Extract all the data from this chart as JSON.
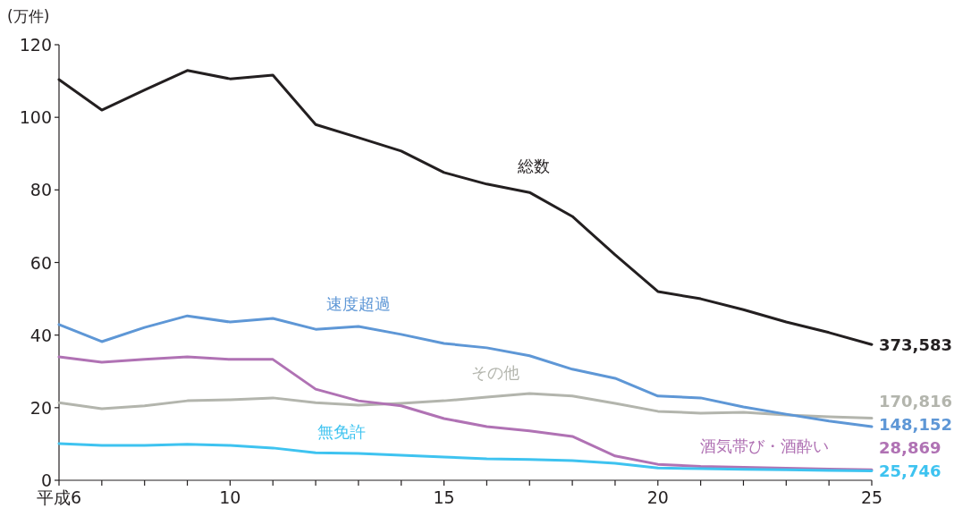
{
  "chart_data": {
    "type": "line",
    "ylabel": "(万件)",
    "x": [
      6,
      7,
      8,
      9,
      10,
      11,
      12,
      13,
      14,
      15,
      16,
      17,
      18,
      19,
      20,
      21,
      22,
      23,
      24,
      25
    ],
    "xlim": [
      6,
      25
    ],
    "ylim": [
      0,
      120
    ],
    "xticks": [
      {
        "value": 6,
        "label": "平成6"
      },
      {
        "value": 7,
        "label": null
      },
      {
        "value": 8,
        "label": null
      },
      {
        "value": 9,
        "label": null
      },
      10,
      {
        "value": 11,
        "label": null
      },
      {
        "value": 12,
        "label": null
      },
      {
        "value": 13,
        "label": null
      },
      {
        "value": 14,
        "label": null
      },
      15,
      {
        "value": 16,
        "label": null
      },
      {
        "value": 17,
        "label": null
      },
      {
        "value": 18,
        "label": null
      },
      {
        "value": 19,
        "label": null
      },
      20,
      {
        "value": 21,
        "label": null
      },
      {
        "value": 22,
        "label": null
      },
      {
        "value": 23,
        "label": null
      },
      {
        "value": 24,
        "label": null
      },
      25
    ],
    "yticks": [
      0,
      20,
      40,
      60,
      80,
      100,
      120
    ],
    "series": [
      {
        "name": "総数",
        "color": "#231f20",
        "values": [
          110.4,
          102,
          107.5,
          112.9,
          110.6,
          111.6,
          98,
          94.4,
          90.7,
          84.8,
          81.6,
          79.3,
          72.7,
          62.1,
          52,
          50,
          47,
          43.6,
          40.7,
          37.4
        ]
      },
      {
        "name": "その他",
        "color": "#b3b5ad",
        "values": [
          21.4,
          19.7,
          20.5,
          21.9,
          22.2,
          22.7,
          21.4,
          20.7,
          21.2,
          21.9,
          22.9,
          23.9,
          23.2,
          21.2,
          19,
          18.5,
          18.7,
          18,
          17.5,
          17.1
        ]
      },
      {
        "name": "速度超過",
        "color": "#5e97d6",
        "values": [
          42.9,
          38.2,
          42.1,
          45.3,
          43.6,
          44.6,
          41.6,
          42.4,
          40.2,
          37.7,
          36.5,
          34.3,
          30.6,
          28.1,
          23.2,
          22.7,
          20.2,
          18.2,
          16.3,
          14.8
        ]
      },
      {
        "name": "酒気帯び・酒酔い",
        "color": "#b072b4",
        "values": [
          34,
          32.5,
          33.3,
          34,
          33.3,
          33.3,
          25.1,
          21.9,
          20.5,
          17,
          14.8,
          13.6,
          12.1,
          6.7,
          4.4,
          3.8,
          3.6,
          3.3,
          3.1,
          2.9
        ]
      },
      {
        "name": "無免許",
        "color": "#3ec3f0",
        "values": [
          10.1,
          9.6,
          9.6,
          9.9,
          9.6,
          8.9,
          7.6,
          7.4,
          6.9,
          6.4,
          5.9,
          5.7,
          5.4,
          4.7,
          3.4,
          3.2,
          3,
          2.9,
          2.7,
          2.6
        ]
      }
    ],
    "annotations": [
      "373,583",
      "170,816",
      "148,152",
      "28,869",
      "25,746"
    ]
  }
}
